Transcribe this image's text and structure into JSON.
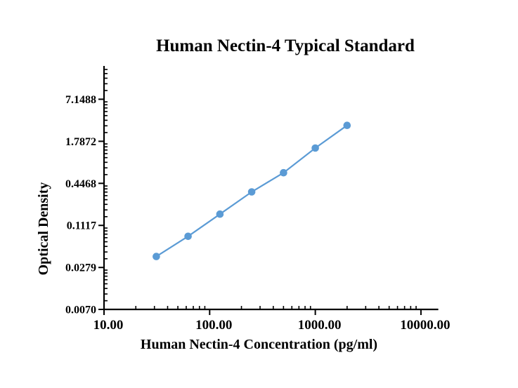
{
  "figure": {
    "background": "#ffffff",
    "text_color": "#000000",
    "axis_color": "#000000"
  },
  "chart_data": {
    "type": "line",
    "title": "Human Nectin-4 Typical Standard",
    "xlabel": "Human Nectin-4 Concentration (pg/ml)",
    "ylabel": "Optical Density",
    "xscale": "log",
    "yscale": "log",
    "x": [
      31.25,
      62.5,
      125,
      250,
      500,
      1000,
      2000
    ],
    "y": [
      0.04,
      0.078,
      0.162,
      0.337,
      0.633,
      1.43,
      3.02
    ],
    "x_ticks": {
      "values": [
        10,
        100,
        1000,
        10000
      ],
      "labels": [
        "10.00",
        "100.00",
        "1000.00",
        "10000.00"
      ]
    },
    "y_ticks": {
      "values": [
        7.1488,
        1.7872,
        0.4468,
        0.1117,
        0.0279,
        0.007
      ],
      "labels": [
        "7.1488",
        "1.7872",
        "0.4468",
        "0.1117",
        "0.0279",
        "0.0070"
      ]
    },
    "xlim": [
      10,
      14600
    ],
    "ylim": [
      0.007,
      21.42
    ],
    "grid": false,
    "legend": "none",
    "line_color": "#5B9BD5",
    "marker_color": "#5B9BD5",
    "marker_radius": 5.3
  }
}
